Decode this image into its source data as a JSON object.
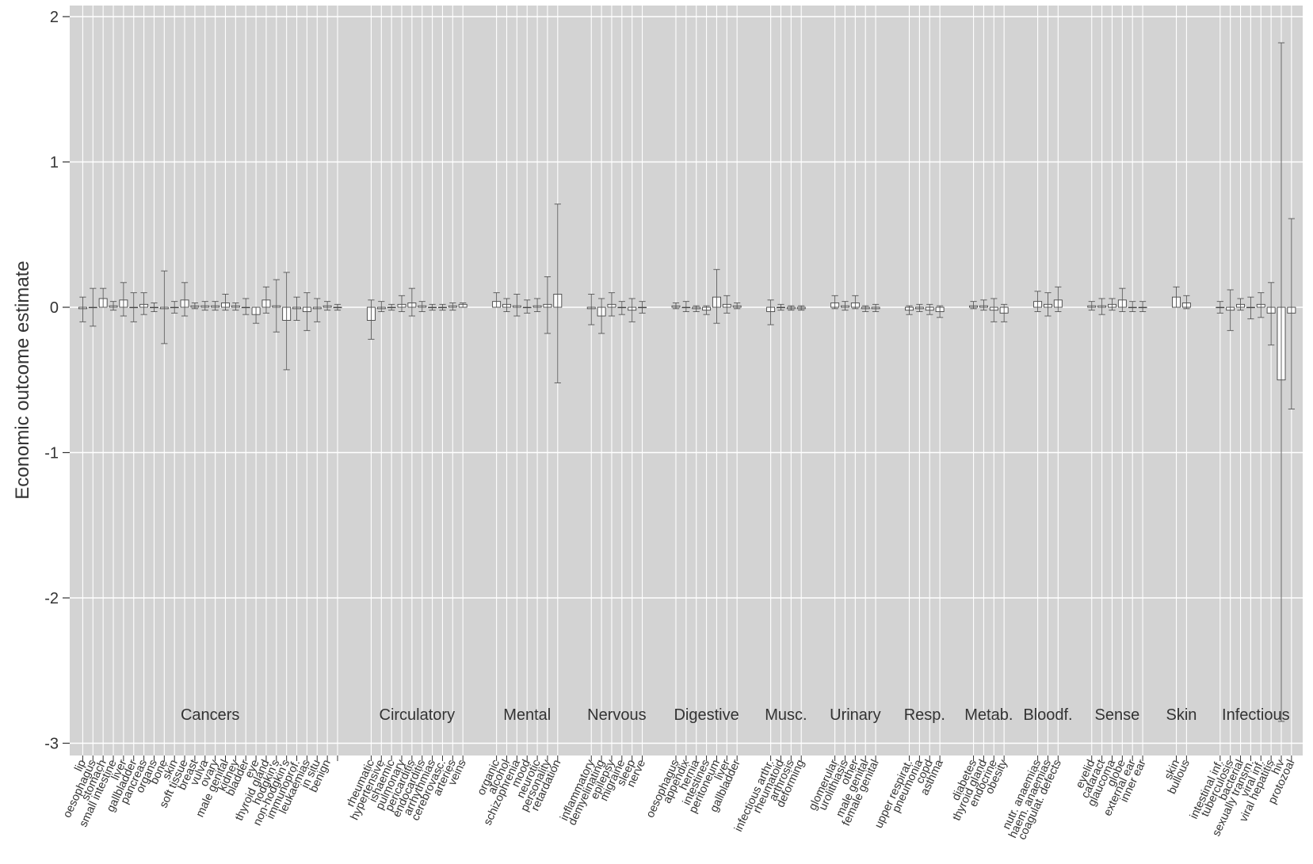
{
  "colors": {
    "panel": "#d3d3d3",
    "grid": "#ffffff",
    "bar_fill": "#ffffff",
    "bar_stroke": "#444444",
    "errorbar": "#555555",
    "text": "#333333"
  },
  "chart_data": {
    "type": "bar",
    "ylabel": "Economic outcome estimate",
    "xlabel": "",
    "ylim": [
      -3.1,
      2.05
    ],
    "yticks": [
      -3,
      -2,
      -1,
      0,
      1,
      2
    ],
    "ytick_labels": [
      "-3",
      "-2",
      "-1",
      "0",
      "1",
      "2"
    ],
    "grid": true,
    "groups": [
      {
        "name": "Cancers",
        "categories": [
          {
            "label": "lip",
            "value": -0.01,
            "lo": -0.1,
            "hi": 0.07
          },
          {
            "label": "oesophagus",
            "value": 0.0,
            "lo": -0.13,
            "hi": 0.13
          },
          {
            "label": "stomach",
            "value": 0.06,
            "lo": 0.0,
            "hi": 0.13
          },
          {
            "label": "small intestine",
            "value": 0.01,
            "lo": -0.02,
            "hi": 0.04
          },
          {
            "label": "liver",
            "value": 0.05,
            "lo": -0.06,
            "hi": 0.17
          },
          {
            "label": "gallbladder",
            "value": 0.0,
            "lo": -0.1,
            "hi": 0.1
          },
          {
            "label": "pancreas",
            "value": 0.02,
            "lo": -0.05,
            "hi": 0.1
          },
          {
            "label": "organs",
            "value": 0.0,
            "lo": -0.03,
            "hi": 0.03
          },
          {
            "label": "bone",
            "value": -0.01,
            "lo": -0.25,
            "hi": 0.25
          },
          {
            "label": "skin",
            "value": 0.0,
            "lo": -0.04,
            "hi": 0.04
          },
          {
            "label": "soft tissue",
            "value": 0.05,
            "lo": -0.06,
            "hi": 0.17
          },
          {
            "label": "breast",
            "value": 0.01,
            "lo": -0.01,
            "hi": 0.03
          },
          {
            "label": "vulva",
            "value": 0.01,
            "lo": -0.02,
            "hi": 0.04
          },
          {
            "label": "ovary",
            "value": 0.01,
            "lo": -0.02,
            "hi": 0.04
          },
          {
            "label": "male genital",
            "value": 0.03,
            "lo": -0.02,
            "hi": 0.09
          },
          {
            "label": "kidney",
            "value": 0.01,
            "lo": -0.02,
            "hi": 0.03
          },
          {
            "label": "bladder",
            "value": 0.0,
            "lo": -0.05,
            "hi": 0.06
          },
          {
            "label": "eye",
            "value": -0.05,
            "lo": -0.11,
            "hi": 0.0
          },
          {
            "label": "thyroid gland",
            "value": 0.05,
            "lo": -0.04,
            "hi": 0.14
          },
          {
            "label": "hodgkin's",
            "value": 0.01,
            "lo": -0.17,
            "hi": 0.19
          },
          {
            "label": "non-hodgkin's",
            "value": -0.09,
            "lo": -0.43,
            "hi": 0.24
          },
          {
            "label": "immunoprof.",
            "value": -0.01,
            "lo": -0.09,
            "hi": 0.07
          },
          {
            "label": "leukaemias",
            "value": -0.03,
            "lo": -0.16,
            "hi": 0.1
          },
          {
            "label": "in situ",
            "value": -0.01,
            "lo": -0.1,
            "hi": 0.06
          },
          {
            "label": "benign",
            "value": 0.01,
            "lo": -0.02,
            "hi": 0.04
          },
          {
            "label": "",
            "value": 0.0,
            "lo": -0.02,
            "hi": 0.02
          }
        ]
      },
      {
        "name": "Circulatory",
        "categories": [
          {
            "label": "rheumatic",
            "value": -0.09,
            "lo": -0.22,
            "hi": 0.05
          },
          {
            "label": "hypertensive",
            "value": -0.01,
            "lo": -0.03,
            "hi": 0.04
          },
          {
            "label": "ishaemic",
            "value": 0.0,
            "lo": -0.02,
            "hi": 0.02
          },
          {
            "label": "pulmonary",
            "value": 0.02,
            "lo": -0.03,
            "hi": 0.08
          },
          {
            "label": "pericarditis",
            "value": 0.03,
            "lo": -0.06,
            "hi": 0.13
          },
          {
            "label": "endocarditis",
            "value": 0.01,
            "lo": -0.03,
            "hi": 0.04
          },
          {
            "label": "arrhythmias",
            "value": 0.0,
            "lo": -0.02,
            "hi": 0.02
          },
          {
            "label": "cerebrovasc.",
            "value": 0.0,
            "lo": -0.02,
            "hi": 0.02
          },
          {
            "label": "arteries",
            "value": 0.01,
            "lo": -0.02,
            "hi": 0.03
          },
          {
            "label": "veins",
            "value": 0.02,
            "lo": 0.0,
            "hi": 0.03
          }
        ]
      },
      {
        "name": "Mental",
        "categories": [
          {
            "label": "organic",
            "value": 0.04,
            "lo": 0.0,
            "hi": 0.1
          },
          {
            "label": "alcohol",
            "value": 0.02,
            "lo": -0.03,
            "hi": 0.06
          },
          {
            "label": "schizophrenia",
            "value": 0.01,
            "lo": -0.06,
            "hi": 0.09
          },
          {
            "label": "mood",
            "value": 0.0,
            "lo": -0.04,
            "hi": 0.05
          },
          {
            "label": "neurotic",
            "value": 0.01,
            "lo": -0.03,
            "hi": 0.06
          },
          {
            "label": "personality",
            "value": 0.02,
            "lo": -0.18,
            "hi": 0.21
          },
          {
            "label": "retardation",
            "value": 0.09,
            "lo": -0.52,
            "hi": 0.71
          }
        ]
      },
      {
        "name": "Nervous",
        "categories": [
          {
            "label": "inflammatory",
            "value": -0.01,
            "lo": -0.12,
            "hi": 0.09
          },
          {
            "label": "demyelinating",
            "value": -0.06,
            "lo": -0.18,
            "hi": 0.06
          },
          {
            "label": "epilepsy",
            "value": 0.02,
            "lo": -0.06,
            "hi": 0.1
          },
          {
            "label": "migraine",
            "value": 0.0,
            "lo": -0.05,
            "hi": 0.04
          },
          {
            "label": "sleep",
            "value": -0.02,
            "lo": -0.1,
            "hi": 0.06
          },
          {
            "label": "nerve",
            "value": 0.0,
            "lo": -0.04,
            "hi": 0.04
          }
        ]
      },
      {
        "name": "Digestive",
        "categories": [
          {
            "label": "oesophagus",
            "value": 0.01,
            "lo": -0.01,
            "hi": 0.03
          },
          {
            "label": "appendix",
            "value": 0.0,
            "lo": -0.03,
            "hi": 0.04
          },
          {
            "label": "hernia",
            "value": -0.01,
            "lo": -0.03,
            "hi": 0.01
          },
          {
            "label": "intestines",
            "value": -0.02,
            "lo": -0.05,
            "hi": 0.01
          },
          {
            "label": "peritoneum",
            "value": 0.07,
            "lo": -0.11,
            "hi": 0.26
          },
          {
            "label": "liver",
            "value": 0.02,
            "lo": -0.04,
            "hi": 0.08
          },
          {
            "label": "gallbladder",
            "value": 0.01,
            "lo": -0.01,
            "hi": 0.03
          }
        ]
      },
      {
        "name": "Musc.",
        "categories": [
          {
            "label": "infectious arthr.",
            "value": -0.03,
            "lo": -0.12,
            "hi": 0.05
          },
          {
            "label": "rheumatoid",
            "value": 0.0,
            "lo": -0.02,
            "hi": 0.02
          },
          {
            "label": "arthrosis",
            "value": -0.01,
            "lo": -0.02,
            "hi": 0.01
          },
          {
            "label": "deforming",
            "value": -0.01,
            "lo": -0.02,
            "hi": 0.01
          }
        ]
      },
      {
        "name": "Urinary",
        "categories": [
          {
            "label": "glomerular",
            "value": 0.03,
            "lo": -0.01,
            "hi": 0.08
          },
          {
            "label": "urolithiasis",
            "value": 0.01,
            "lo": -0.02,
            "hi": 0.04
          },
          {
            "label": "other",
            "value": 0.03,
            "lo": -0.01,
            "hi": 0.08
          },
          {
            "label": "male genital",
            "value": -0.01,
            "lo": -0.03,
            "hi": 0.01
          },
          {
            "label": "female genital",
            "value": -0.01,
            "lo": -0.03,
            "hi": 0.02
          }
        ]
      },
      {
        "name": "Resp.",
        "categories": [
          {
            "label": "upper respirat.",
            "value": -0.02,
            "lo": -0.05,
            "hi": 0.01
          },
          {
            "label": "pneumonia",
            "value": -0.01,
            "lo": -0.03,
            "hi": 0.02
          },
          {
            "label": "copd",
            "value": -0.02,
            "lo": -0.05,
            "hi": 0.02
          },
          {
            "label": "asthma",
            "value": -0.03,
            "lo": -0.07,
            "hi": 0.01
          }
        ]
      },
      {
        "name": "Metab.",
        "categories": [
          {
            "label": "diabetes",
            "value": 0.01,
            "lo": -0.01,
            "hi": 0.04
          },
          {
            "label": "thyroid gland",
            "value": 0.01,
            "lo": -0.02,
            "hi": 0.05
          },
          {
            "label": "endocrine",
            "value": -0.02,
            "lo": -0.1,
            "hi": 0.06
          },
          {
            "label": "obesity",
            "value": -0.04,
            "lo": -0.1,
            "hi": 0.02
          }
        ]
      },
      {
        "name": "Bloodf.",
        "categories": [
          {
            "label": "nutr. anaemias",
            "value": 0.04,
            "lo": -0.03,
            "hi": 0.11
          },
          {
            "label": "haem. anaemias",
            "value": 0.02,
            "lo": -0.06,
            "hi": 0.1
          },
          {
            "label": "coagulat. defects",
            "value": 0.05,
            "lo": -0.03,
            "hi": 0.14
          }
        ]
      },
      {
        "name": "Sense",
        "categories": [
          {
            "label": "eyelid",
            "value": 0.01,
            "lo": -0.02,
            "hi": 0.04
          },
          {
            "label": "cataract",
            "value": 0.01,
            "lo": -0.05,
            "hi": 0.06
          },
          {
            "label": "glaucoma",
            "value": 0.02,
            "lo": -0.02,
            "hi": 0.06
          },
          {
            "label": "globe",
            "value": 0.05,
            "lo": -0.03,
            "hi": 0.13
          },
          {
            "label": "external ear",
            "value": 0.0,
            "lo": -0.03,
            "hi": 0.04
          },
          {
            "label": "inner ear",
            "value": 0.0,
            "lo": -0.03,
            "hi": 0.04
          }
        ]
      },
      {
        "name": "Skin",
        "categories": [
          {
            "label": "skin",
            "value": 0.07,
            "lo": 0.0,
            "hi": 0.14
          },
          {
            "label": "bullous",
            "value": 0.03,
            "lo": -0.01,
            "hi": 0.08
          }
        ]
      },
      {
        "name": "Infectious",
        "categories": [
          {
            "label": "intestinal inf.",
            "value": 0.0,
            "lo": -0.04,
            "hi": 0.04
          },
          {
            "label": "tuberculosis",
            "value": -0.02,
            "lo": -0.16,
            "hi": 0.12
          },
          {
            "label": "bacterial",
            "value": 0.02,
            "lo": -0.02,
            "hi": 0.06
          },
          {
            "label": "sexually transm.",
            "value": 0.0,
            "lo": -0.08,
            "hi": 0.07
          },
          {
            "label": "viral inf.",
            "value": 0.02,
            "lo": -0.07,
            "hi": 0.1
          },
          {
            "label": "viral hepatitis",
            "value": -0.04,
            "lo": -0.26,
            "hi": 0.17
          },
          {
            "label": "hiv",
            "value": -0.5,
            "lo": -2.85,
            "hi": 1.82
          },
          {
            "label": "protozoal",
            "value": -0.04,
            "lo": -0.7,
            "hi": 0.61
          }
        ]
      }
    ]
  }
}
